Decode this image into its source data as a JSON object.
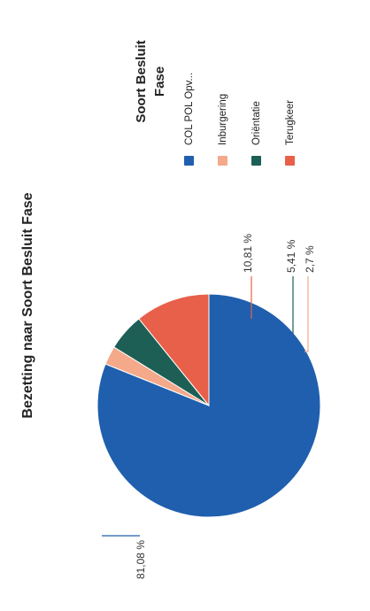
{
  "chart_data": {
    "type": "pie",
    "title": "Bezetting naar Soort Besluit Fase",
    "legend_title_line1": "Soort Besluit",
    "legend_title_line2": "Fase",
    "legend_position": "right",
    "categories": [
      "COL POL Opv...",
      "Inburgering",
      "Oriëntatie",
      "Terugkeer"
    ],
    "values": [
      81.08,
      2.7,
      5.41,
      10.81
    ],
    "data_labels": [
      "81,08 %",
      "2,7 %",
      "5,41 %",
      "10,81 %"
    ],
    "colors": [
      "#1f5fae",
      "#f3a98a",
      "#1d5e55",
      "#e8604a"
    ]
  }
}
